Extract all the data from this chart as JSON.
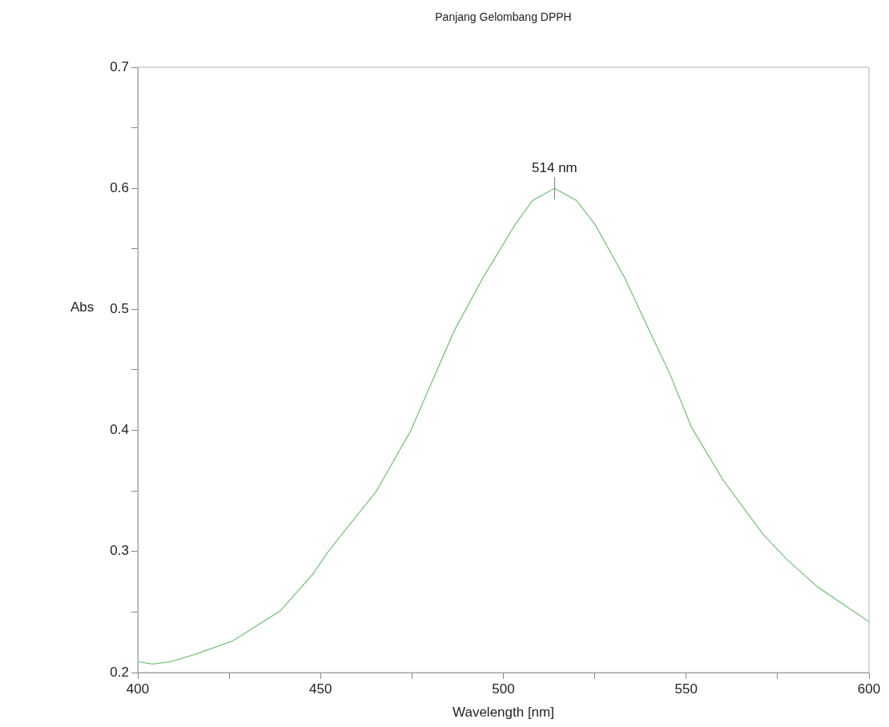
{
  "chart_data": {
    "type": "line",
    "title": "Panjang Gelombang DPPH",
    "xlabel": "Wavelength [nm]",
    "ylabel": "Abs",
    "series": [
      {
        "color": "#7cc47c",
        "x": [
          400,
          404,
          409,
          415.6,
          425.9,
          439,
          447.8,
          452.1,
          465.3,
          474.7,
          479,
          486.5,
          494.4,
          503.2,
          508,
          514,
          520,
          525.1,
          533.2,
          540,
          545.5,
          551.4,
          560.1,
          571.1,
          577.7,
          585.8,
          600
        ],
        "values": [
          0.209,
          0.207,
          0.209,
          0.215,
          0.226,
          0.251,
          0.281,
          0.3,
          0.35,
          0.4,
          0.43,
          0.482,
          0.526,
          0.57,
          0.59,
          0.6,
          0.59,
          0.57,
          0.526,
          0.482,
          0.447,
          0.403,
          0.359,
          0.314,
          0.293,
          0.271,
          0.242
        ]
      }
    ],
    "annotations": [
      {
        "text": "514 nm",
        "x": 514,
        "y": 0.6
      }
    ],
    "xlim": [
      400,
      600
    ],
    "xticks": [
      400,
      {
        "value": 425,
        "label": null
      },
      450,
      {
        "value": 475,
        "label": null
      },
      500,
      {
        "value": 525,
        "label": null
      },
      550,
      {
        "value": 575,
        "label": null
      },
      600
    ],
    "ylim": [
      0.2,
      0.7
    ],
    "yticks": [
      {
        "value": 0.2,
        "label": "0.2"
      },
      {
        "value": 0.25,
        "label": null
      },
      {
        "value": 0.3,
        "label": "0.3"
      },
      {
        "value": 0.35,
        "label": null
      },
      {
        "value": 0.4,
        "label": "0.4"
      },
      {
        "value": 0.45,
        "label": null
      },
      {
        "value": 0.5,
        "label": "0.5"
      },
      {
        "value": 0.55,
        "label": null
      },
      {
        "value": 0.6,
        "label": "0.6"
      },
      {
        "value": 0.65,
        "label": null
      },
      {
        "value": 0.7,
        "label": "0.7"
      }
    ],
    "grid": false,
    "legend": false,
    "marker": "none",
    "line_style": "solid"
  }
}
